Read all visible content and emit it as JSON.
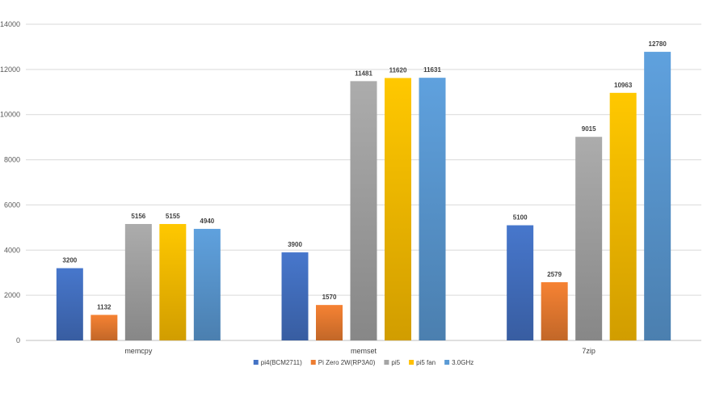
{
  "chart_data": {
    "type": "bar",
    "categories": [
      "memcpy",
      "memset",
      "7zip"
    ],
    "series": [
      {
        "name": "pi4(BCM2711)",
        "color": "#4472c4",
        "values": [
          3200,
          3900,
          5100
        ]
      },
      {
        "name": "Pi Zero 2W(RP3A0)",
        "color": "#ed7d31",
        "values": [
          1132,
          1570,
          2579
        ]
      },
      {
        "name": "pi5",
        "color": "#a5a5a5",
        "values": [
          5156,
          11481,
          9015
        ]
      },
      {
        "name": "pi5 fan",
        "color": "#ffc000",
        "values": [
          5155,
          11620,
          10963
        ]
      },
      {
        "name": "3.0GHz",
        "color": "#5b9bd5",
        "values": [
          4940,
          11631,
          12780
        ]
      }
    ],
    "ylim": [
      0,
      14000
    ],
    "yticks": [
      0,
      2000,
      4000,
      6000,
      8000,
      10000,
      12000,
      14000
    ],
    "grid": true,
    "legend_position": "bottom"
  }
}
